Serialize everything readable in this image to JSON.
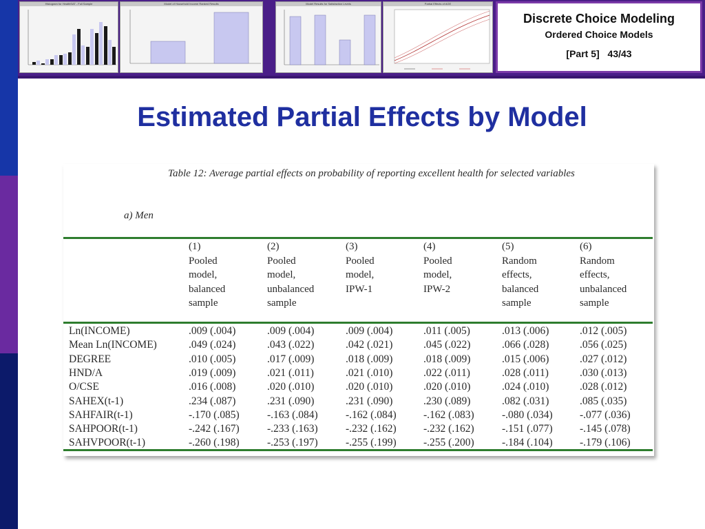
{
  "header": {
    "course_title": "Discrete Choice Modeling",
    "subtitle": "Ordered Choice Models",
    "part": "[Part 5]",
    "page": "43/43"
  },
  "slide_title": "Estimated Partial Effects by Model",
  "thumbnails": [
    {
      "title": "Histogram for HealthSAT - Full Sample"
    },
    {
      "title": "Model of Household Income Ranked Results"
    },
    {
      "title": "Model Results for Satisfaction Levels"
    },
    {
      "title": "Partial Effects of AGE"
    }
  ],
  "table": {
    "caption": "Table 12: Average partial effects on probability of reporting excellent health for selected variables",
    "subcaption": "a)  Men",
    "columns": [
      {
        "num": "(1)",
        "lines": [
          "Pooled",
          "model,",
          "balanced",
          "sample"
        ]
      },
      {
        "num": "(2)",
        "lines": [
          "Pooled",
          "model,",
          "unbalanced",
          "sample"
        ]
      },
      {
        "num": "(3)",
        "lines": [
          "Pooled",
          "model,",
          "IPW-1"
        ]
      },
      {
        "num": "(4)",
        "lines": [
          "Pooled",
          "model,",
          "IPW-2"
        ]
      },
      {
        "num": "(5)",
        "lines": [
          "Random",
          "effects,",
          "balanced",
          "sample"
        ]
      },
      {
        "num": "(6)",
        "lines": [
          "Random",
          "effects,",
          "unbalanced",
          "sample"
        ]
      }
    ],
    "rows": [
      {
        "label": "Ln(INCOME)",
        "values": [
          ".009 (.004)",
          ".009 (.004)",
          ".009 (.004)",
          ".011 (.005)",
          ".013 (.006)",
          ".012 (.005)"
        ]
      },
      {
        "label": "Mean Ln(INCOME)",
        "values": [
          ".049 (.024)",
          ".043 (.022)",
          ".042 (.021)",
          ".045 (.022)",
          ".066 (.028)",
          ".056 (.025)"
        ]
      },
      {
        "label": "DEGREE",
        "values": [
          ".010 (.005)",
          ".017 (.009)",
          ".018 (.009)",
          ".018 (.009)",
          ".015 (.006)",
          ".027 (.012)"
        ]
      },
      {
        "label": "HND/A",
        "values": [
          ".019 (.009)",
          ".021 (.011)",
          ".021 (.010)",
          ".022 (.011)",
          ".028 (.011)",
          ".030 (.013)"
        ]
      },
      {
        "label": "O/CSE",
        "values": [
          ".016 (.008)",
          ".020 (.010)",
          ".020 (.010)",
          ".020 (.010)",
          ".024 (.010)",
          ".028 (.012)"
        ]
      },
      {
        "label": "SAHEX(t-1)",
        "values": [
          ".234 (.087)",
          ".231 (.090)",
          ".231 (.090)",
          ".230 (.089)",
          ".082 (.031)",
          ".085 (.035)"
        ]
      },
      {
        "label": "SAHFAIR(t-1)",
        "values": [
          "-.170 (.085)",
          "-.163 (.084)",
          "-.162 (.084)",
          "-.162 (.083)",
          "-.080 (.034)",
          "-.077 (.036)"
        ]
      },
      {
        "label": "SAHPOOR(t-1)",
        "values": [
          "-.242 (.167)",
          "-.233 (.163)",
          "-.232 (.162)",
          "-.232 (.162)",
          "-.151 (.077)",
          "-.145 (.078)"
        ]
      },
      {
        "label": "SAHVPOOR(t-1)",
        "values": [
          "-.260 (.198)",
          "-.253 (.197)",
          "-.255 (.199)",
          "-.255 (.200)",
          "-.184 (.104)",
          "-.179 (.106)"
        ]
      }
    ]
  },
  "colors": {
    "title_blue": "#1f2fa0",
    "strip_purple": "#4a1e88",
    "rule_green": "#2e7d2e"
  }
}
